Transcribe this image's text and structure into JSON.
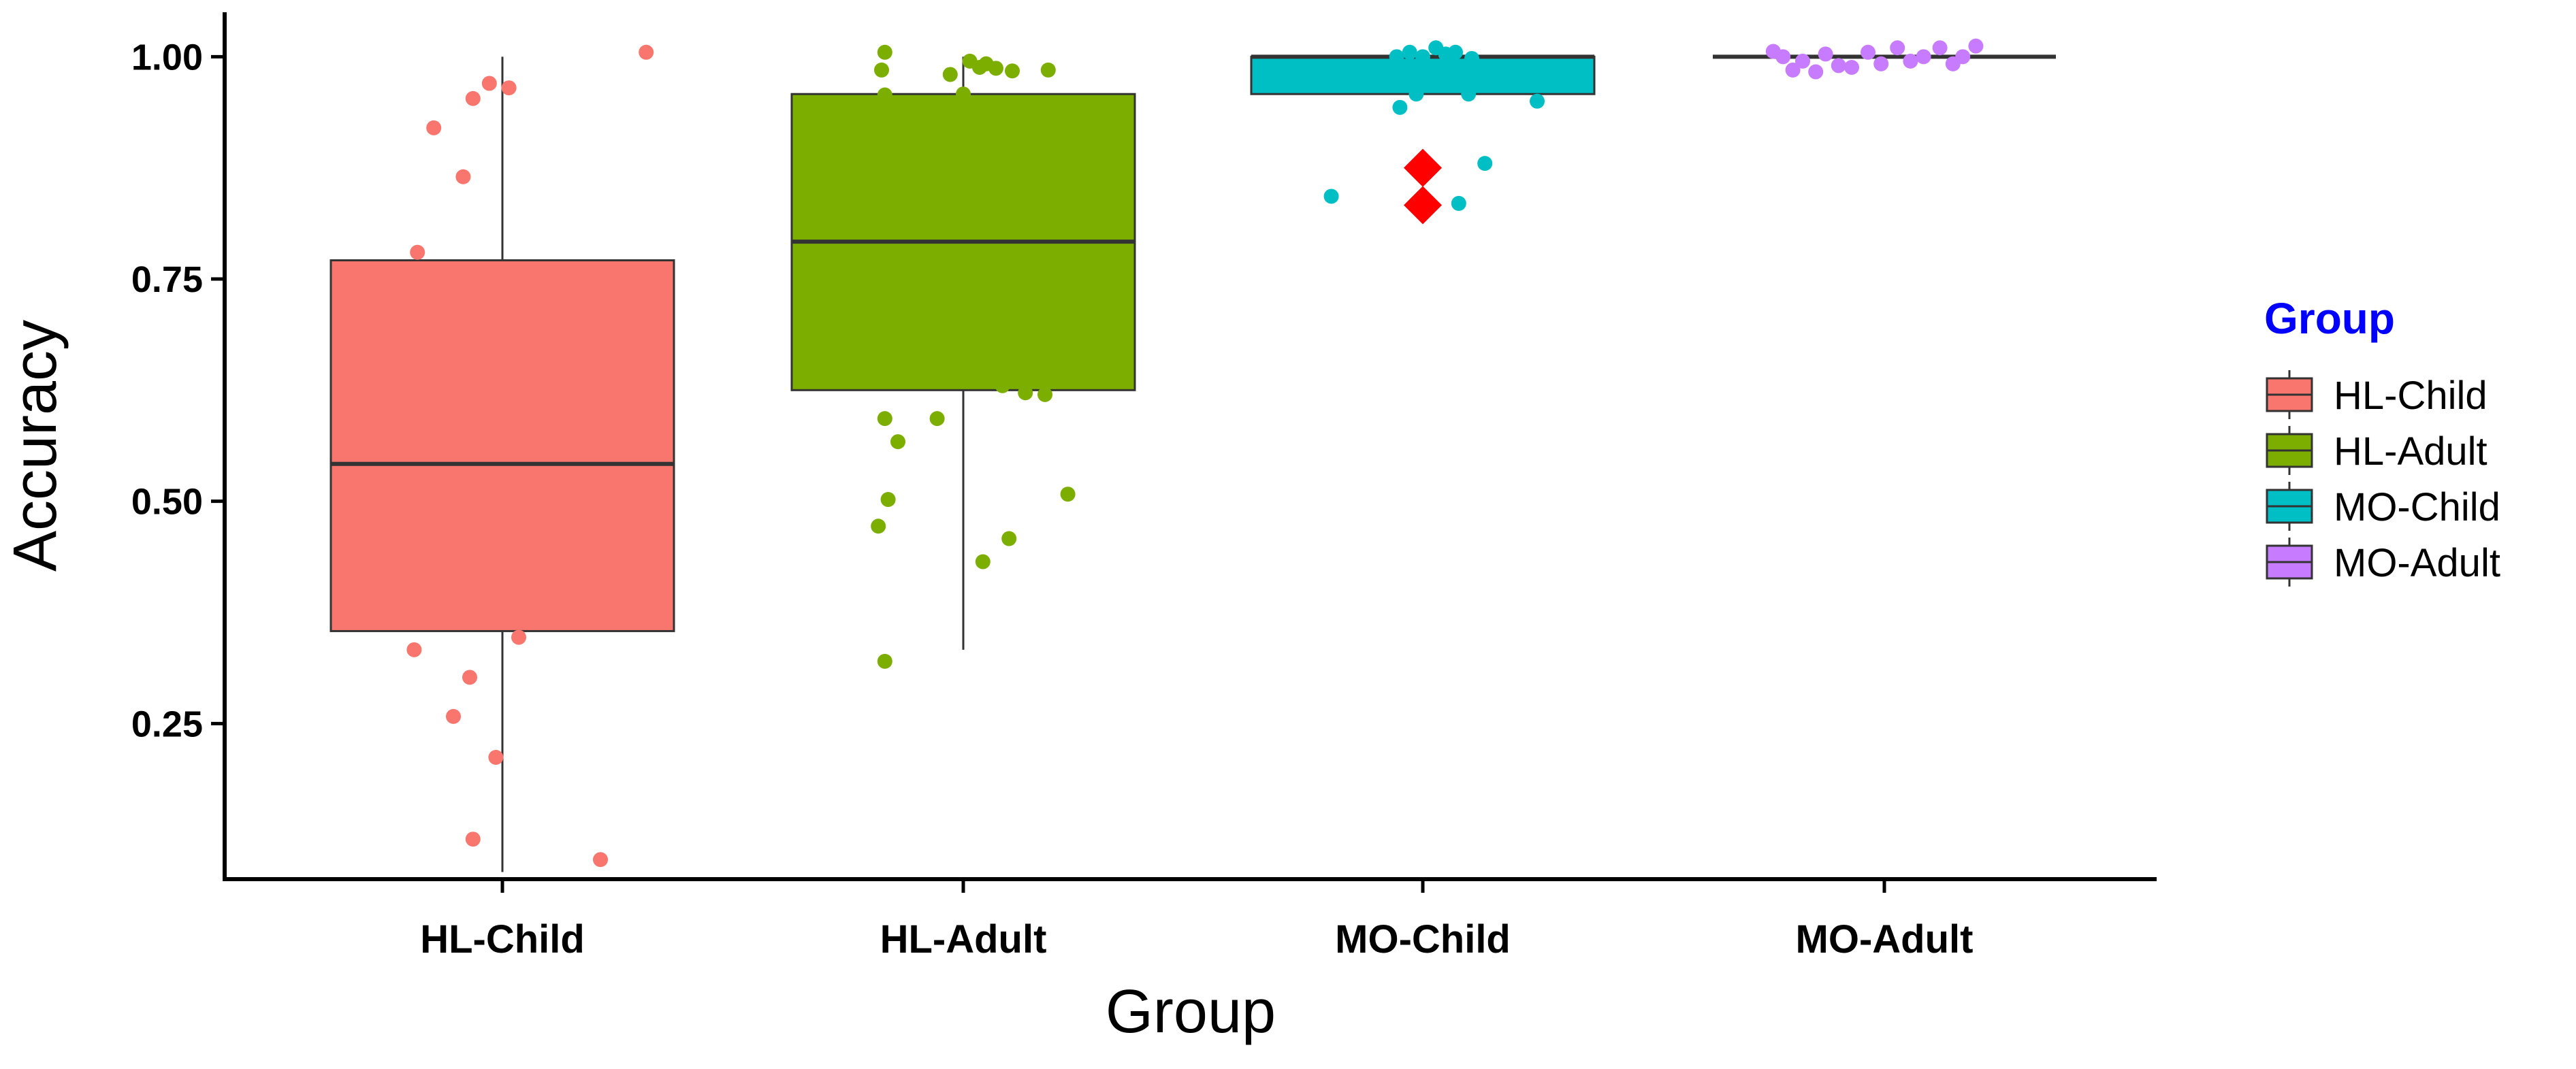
{
  "chart_data": {
    "type": "boxplot",
    "title": "",
    "xlabel": "Group",
    "ylabel": "Accuracy",
    "ylim": [
      0.075,
      1.05
    ],
    "yticks": [
      0.25,
      0.5,
      0.75,
      1.0
    ],
    "ytick_labels": [
      "0.25",
      "0.50",
      "0.75",
      "1.00"
    ],
    "grid": false,
    "legend": {
      "title": "Group",
      "title_color": "#0000ff",
      "position": "right",
      "entries": [
        "HL-Child",
        "HL-Adult",
        "MO-Child",
        "MO-Adult"
      ]
    },
    "categories": [
      "HL-Child",
      "HL-Adult",
      "MO-Child",
      "MO-Adult"
    ],
    "colors": [
      "#f8766d",
      "#7cae00",
      "#00bfc4",
      "#c77cff"
    ],
    "series": [
      {
        "name": "HL-Child",
        "box": {
          "min": 0.083,
          "q1": 0.354,
          "median": 0.542,
          "q3": 0.771,
          "max": 1.0
        },
        "outliers": [],
        "points": [
          {
            "dx": 0.44,
            "y": 1.005
          },
          {
            "dx": 0.02,
            "y": 0.965
          },
          {
            "dx": -0.04,
            "y": 0.97
          },
          {
            "dx": -0.09,
            "y": 0.953
          },
          {
            "dx": -0.21,
            "y": 0.92
          },
          {
            "dx": -0.12,
            "y": 0.865
          },
          {
            "dx": -0.26,
            "y": 0.78
          },
          {
            "dx": -0.27,
            "y": 0.333
          },
          {
            "dx": 0.05,
            "y": 0.347
          },
          {
            "dx": -0.1,
            "y": 0.302
          },
          {
            "dx": -0.15,
            "y": 0.258
          },
          {
            "dx": -0.02,
            "y": 0.212
          },
          {
            "dx": -0.09,
            "y": 0.12
          },
          {
            "dx": 0.3,
            "y": 0.097
          }
        ]
      },
      {
        "name": "HL-Adult",
        "box": {
          "min": 0.333,
          "q1": 0.625,
          "median": 0.792,
          "q3": 0.958,
          "max": 1.0
        },
        "outliers": [],
        "points": [
          {
            "dx": -0.24,
            "y": 1.005
          },
          {
            "dx": -0.25,
            "y": 0.985
          },
          {
            "dx": -0.04,
            "y": 0.98
          },
          {
            "dx": 0.07,
            "y": 0.992
          },
          {
            "dx": 0.1,
            "y": 0.987
          },
          {
            "dx": 0.15,
            "y": 0.984
          },
          {
            "dx": 0.26,
            "y": 0.985
          },
          {
            "dx": 0.02,
            "y": 0.995
          },
          {
            "dx": 0.05,
            "y": 0.988
          },
          {
            "dx": -0.24,
            "y": 0.957
          },
          {
            "dx": 0.0,
            "y": 0.958
          },
          {
            "dx": 0.19,
            "y": 0.622
          },
          {
            "dx": 0.25,
            "y": 0.62
          },
          {
            "dx": -0.24,
            "y": 0.593
          },
          {
            "dx": -0.08,
            "y": 0.593
          },
          {
            "dx": 0.12,
            "y": 0.63
          },
          {
            "dx": -0.2,
            "y": 0.567
          },
          {
            "dx": -0.23,
            "y": 0.502
          },
          {
            "dx": -0.26,
            "y": 0.472
          },
          {
            "dx": 0.32,
            "y": 0.508
          },
          {
            "dx": 0.14,
            "y": 0.458
          },
          {
            "dx": 0.06,
            "y": 0.432
          },
          {
            "dx": -0.24,
            "y": 0.32
          }
        ]
      },
      {
        "name": "MO-Child",
        "box": {
          "min": 0.958,
          "q1": 0.958,
          "median": 1.0,
          "q3": 1.0,
          "max": 1.0
        },
        "outliers": [
          0.875,
          0.833
        ],
        "points": [
          {
            "dx": -0.08,
            "y": 1.0
          },
          {
            "dx": -0.04,
            "y": 1.005
          },
          {
            "dx": 0.0,
            "y": 1.0
          },
          {
            "dx": 0.04,
            "y": 1.01
          },
          {
            "dx": 0.07,
            "y": 1.003
          },
          {
            "dx": 0.1,
            "y": 1.005
          },
          {
            "dx": 0.15,
            "y": 0.998
          },
          {
            "dx": -0.02,
            "y": 0.958
          },
          {
            "dx": 0.14,
            "y": 0.958
          },
          {
            "dx": -0.07,
            "y": 0.943
          },
          {
            "dx": 0.35,
            "y": 0.95
          },
          {
            "dx": 0.19,
            "y": 0.88
          },
          {
            "dx": 0.11,
            "y": 0.835
          },
          {
            "dx": -0.28,
            "y": 0.843
          }
        ]
      },
      {
        "name": "MO-Adult",
        "box": {
          "min": 1.0,
          "q1": 1.0,
          "median": 1.0,
          "q3": 1.0,
          "max": 1.0
        },
        "outliers": [],
        "points": [
          {
            "dx": -0.31,
            "y": 1.0
          },
          {
            "dx": -0.28,
            "y": 0.985
          },
          {
            "dx": -0.25,
            "y": 0.995
          },
          {
            "dx": -0.21,
            "y": 0.983
          },
          {
            "dx": -0.18,
            "y": 1.003
          },
          {
            "dx": -0.14,
            "y": 0.99
          },
          {
            "dx": -0.1,
            "y": 0.988
          },
          {
            "dx": -0.05,
            "y": 1.005
          },
          {
            "dx": -0.01,
            "y": 0.992
          },
          {
            "dx": 0.04,
            "y": 1.01
          },
          {
            "dx": 0.08,
            "y": 0.995
          },
          {
            "dx": 0.12,
            "y": 1.0
          },
          {
            "dx": 0.17,
            "y": 1.01
          },
          {
            "dx": 0.21,
            "y": 0.992
          },
          {
            "dx": 0.24,
            "y": 1.0
          },
          {
            "dx": 0.28,
            "y": 1.012
          },
          {
            "dx": -0.34,
            "y": 1.006
          }
        ]
      }
    ]
  }
}
